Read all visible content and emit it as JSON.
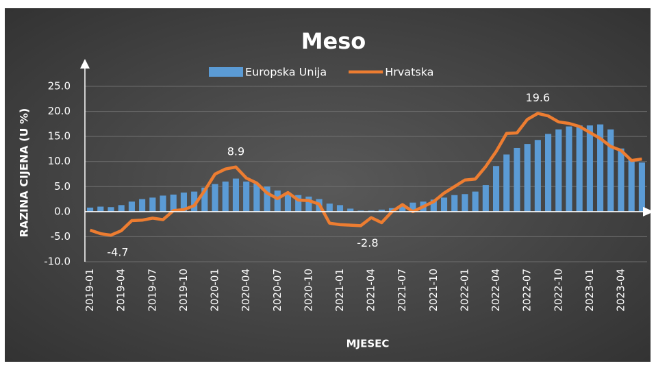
{
  "chart_data": {
    "type": "bar-line",
    "title": "Meso",
    "y_label": "RAZINA CIJENA (U %)",
    "x_label": "MJESEC",
    "categories": [
      "2019-01",
      null,
      null,
      "2019-04",
      null,
      null,
      "2019-07",
      null,
      null,
      "2019-10",
      null,
      null,
      "2020-01",
      null,
      null,
      "2020-04",
      null,
      null,
      "2020-07",
      null,
      null,
      "2020-10",
      null,
      null,
      "2021-01",
      null,
      null,
      "2021-04",
      null,
      null,
      "2021-07",
      null,
      null,
      "2021-10",
      null,
      null,
      "2022-01",
      null,
      null,
      "2022-04",
      null,
      null,
      "2022-07",
      null,
      null,
      "2022-10",
      null,
      null,
      "2023-01",
      null,
      null,
      "2023-04",
      null,
      null
    ],
    "series": [
      {
        "name": "Europska Unija",
        "kind": "bar",
        "color": "#5b9bd5",
        "values": [
          0.8,
          1.0,
          0.9,
          1.3,
          2.0,
          2.5,
          2.8,
          3.2,
          3.4,
          3.8,
          4.0,
          4.8,
          5.5,
          6.0,
          6.6,
          6.0,
          5.6,
          5.0,
          4.2,
          3.8,
          3.3,
          3.0,
          2.5,
          1.6,
          1.3,
          0.6,
          0.2,
          0.2,
          0.4,
          0.7,
          1.2,
          1.8,
          2.0,
          2.4,
          2.8,
          3.3,
          3.5,
          4.0,
          5.3,
          9.1,
          11.4,
          12.7,
          13.5,
          14.3,
          15.5,
          16.4,
          17.0,
          17.2,
          17.2,
          17.4,
          16.4,
          12.6,
          10.5,
          9.8
        ]
      },
      {
        "name": "Hrvatska",
        "kind": "line",
        "color": "#ed7d31",
        "values": [
          -3.7,
          -4.4,
          -4.7,
          -3.8,
          -1.8,
          -1.7,
          -1.3,
          -1.6,
          0.2,
          0.4,
          1.2,
          4.2,
          7.5,
          8.5,
          8.9,
          6.7,
          5.7,
          3.7,
          2.6,
          3.8,
          2.3,
          2.2,
          1.5,
          -2.3,
          -2.6,
          -2.7,
          -2.8,
          -1.2,
          -2.2,
          0.0,
          1.4,
          0.0,
          1.0,
          2.0,
          3.7,
          5.0,
          6.3,
          6.5,
          9.0,
          12.0,
          15.6,
          15.7,
          18.4,
          19.6,
          19.1,
          17.9,
          17.6,
          17.0,
          15.8,
          14.6,
          13.0,
          12.2,
          10.2,
          10.5
        ],
        "value_labels": [
          null,
          null,
          "-4.7",
          null,
          null,
          null,
          null,
          null,
          null,
          null,
          null,
          null,
          null,
          null,
          "8.9",
          null,
          null,
          null,
          null,
          null,
          null,
          null,
          null,
          null,
          null,
          null,
          "-2.8",
          null,
          null,
          null,
          null,
          null,
          null,
          null,
          null,
          null,
          null,
          null,
          null,
          null,
          null,
          null,
          null,
          "19.6",
          null,
          null,
          null,
          null,
          null,
          null,
          null,
          null,
          null,
          null
        ]
      }
    ],
    "ylim": [
      -10,
      25
    ],
    "yticks": [
      {
        "value": -10,
        "label": "-10.0"
      },
      {
        "value": -5,
        "label": "-5.0"
      },
      {
        "value": 0,
        "label": "0.0"
      },
      {
        "value": 5,
        "label": "5.0"
      },
      {
        "value": 10,
        "label": "10.0"
      },
      {
        "value": 15,
        "label": "15.0"
      },
      {
        "value": 20,
        "label": "20.0"
      },
      {
        "value": 25,
        "label": "25.0"
      }
    ],
    "grid": true,
    "legend": "top"
  }
}
